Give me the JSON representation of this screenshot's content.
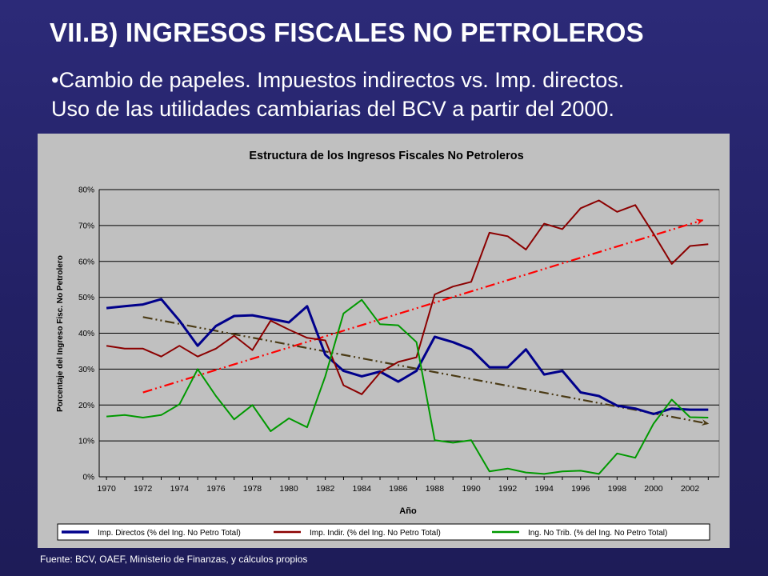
{
  "slide": {
    "title": "VII.B) INGRESOS FISCALES NO PETROLEROS",
    "bullet_line1": "•Cambio de papeles. Impuestos indirectos vs. Imp. directos.",
    "bullet_line2": "Uso de las utilidades cambiarias del BCV a partir del 2000.",
    "source": "Fuente: BCV, OAEF, Ministerio de Finanzas,  y cálculos propios"
  },
  "colors": {
    "background": "#25236a",
    "chart_bg": "#c0c0c0",
    "directos": "#00008b",
    "indirectos": "#8b0000",
    "no_trib": "#009900",
    "trend_up": "#ff0000",
    "trend_down": "#4a3a14"
  },
  "chart_data": {
    "type": "line",
    "title": "Estructura de los Ingresos Fiscales No Petroleros",
    "xlabel": "Año",
    "ylabel": "Porcentaje del Ingreso Fisc. No Petrolero",
    "ylim": [
      0,
      80
    ],
    "xlim": [
      1970,
      2003
    ],
    "y_ticks": [
      "0%",
      "10%",
      "20%",
      "30%",
      "40%",
      "50%",
      "60%",
      "70%",
      "80%"
    ],
    "y_tick_values": [
      0,
      10,
      20,
      30,
      40,
      50,
      60,
      70,
      80
    ],
    "x_tick_labels": [
      "1970",
      "1972",
      "1974",
      "1976",
      "1978",
      "1980",
      "1982",
      "1984",
      "1986",
      "1988",
      "1990",
      "1992",
      "1994",
      "1996",
      "1998",
      "2000",
      "2002"
    ],
    "grid": "horizontal",
    "legend_position": "bottom",
    "x": [
      1970,
      1971,
      1972,
      1973,
      1974,
      1975,
      1976,
      1977,
      1978,
      1979,
      1980,
      1981,
      1982,
      1983,
      1984,
      1985,
      1986,
      1987,
      1988,
      1989,
      1990,
      1991,
      1992,
      1993,
      1994,
      1995,
      1996,
      1997,
      1998,
      1999,
      2000,
      2001,
      2002,
      2003
    ],
    "series": [
      {
        "name": "Imp. Directos (% del Ing. No Petro Total)",
        "color": "#00008b",
        "width": 3,
        "values": [
          47,
          47.5,
          48,
          49.5,
          43.5,
          36.5,
          42,
          44.8,
          45,
          44,
          43,
          47.5,
          34,
          29.5,
          28,
          29.3,
          26.5,
          29.5,
          39,
          37.5,
          35.5,
          30.5,
          30.5,
          35.5,
          28.5,
          29.5,
          23.5,
          22.5,
          19.8,
          19,
          17.5,
          19,
          18.7,
          18.7
        ]
      },
      {
        "name": "Imp. Indir. (% del Ing. No Petro Total)",
        "color": "#8b0000",
        "width": 2,
        "values": [
          36.5,
          35.7,
          35.7,
          33.5,
          36.5,
          33.5,
          35.7,
          39.3,
          35.3,
          43.5,
          41,
          38.7,
          38,
          25.5,
          23,
          29,
          32,
          33.3,
          50.8,
          53,
          54.3,
          68,
          67,
          63.3,
          70.5,
          69,
          74.8,
          77,
          73.8,
          75.7,
          67.7,
          59.3,
          64.3,
          64.8
        ]
      },
      {
        "name": "Ing. No Trib. (% del Ing. No Petro Total)",
        "color": "#009900",
        "width": 2,
        "values": [
          16.8,
          17.2,
          16.5,
          17.2,
          20.2,
          30,
          22.5,
          16,
          20,
          12.7,
          16.3,
          13.8,
          28,
          45.5,
          49.3,
          42.5,
          42.2,
          37.5,
          10.2,
          9.5,
          10.2,
          1.5,
          2.3,
          1.2,
          0.8,
          1.5,
          1.7,
          0.8,
          6.5,
          5.3,
          14.8,
          21.5,
          16.6,
          16.5
        ]
      }
    ],
    "trend_lines": [
      {
        "from": [
          1972,
          23.5
        ],
        "to": [
          2002.7,
          71.5
        ],
        "color": "#ff0000"
      },
      {
        "from": [
          1972,
          44.5
        ],
        "to": [
          2003,
          14.8
        ],
        "color": "#4a3a14"
      }
    ]
  }
}
